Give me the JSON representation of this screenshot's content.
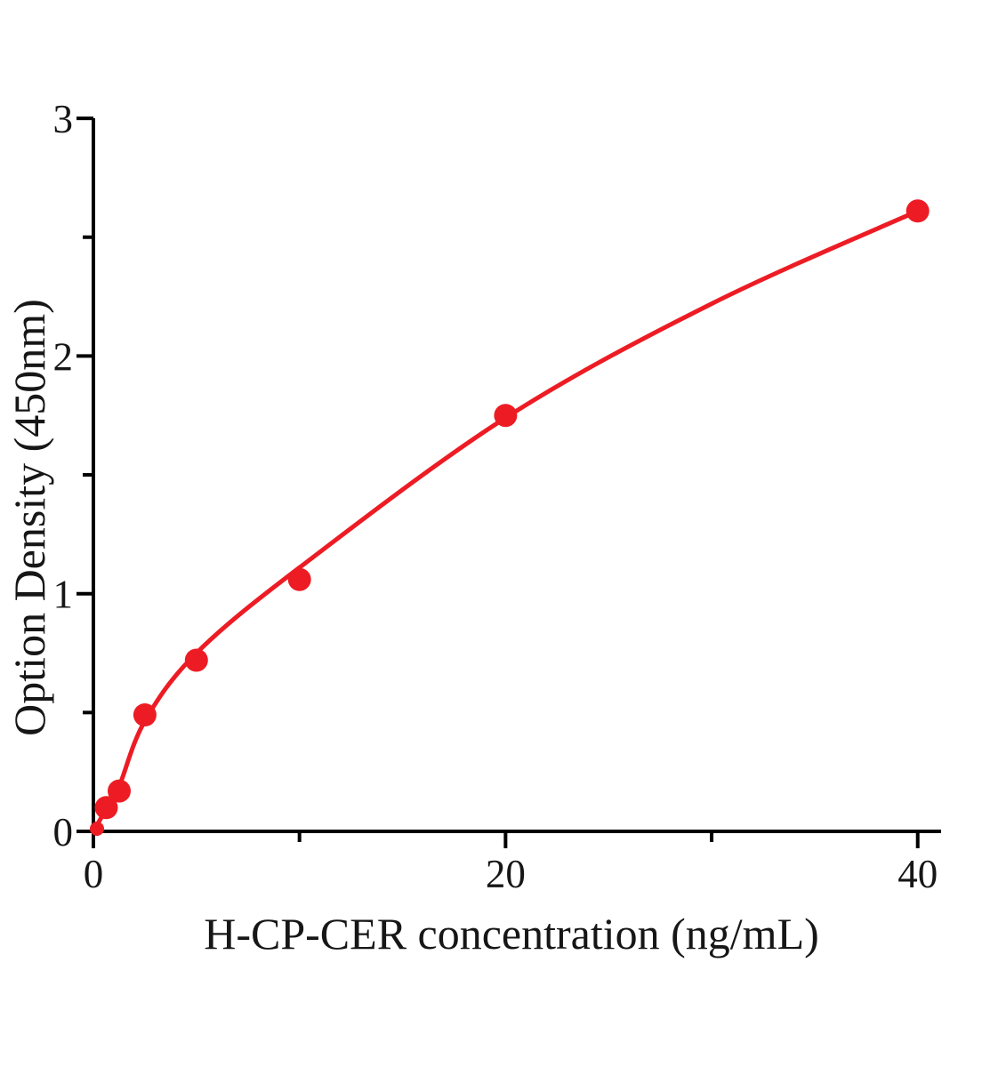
{
  "figure": {
    "background_color": "#ffffff"
  },
  "chart_data": {
    "type": "scatter",
    "title": "",
    "xlabel": "H-CP-CER concentration（ng/mL)",
    "ylabel": "Option Density（450nm）",
    "xlim": [
      0,
      41
    ],
    "ylim": [
      0,
      3
    ],
    "grid": false,
    "legend": "none",
    "x_ticks": {
      "major_values": [
        0,
        20,
        40
      ],
      "major_labels": [
        "0",
        "20",
        "40"
      ],
      "minor_values": [
        10,
        30
      ]
    },
    "y_ticks": {
      "major_values": [
        0,
        1,
        2,
        3
      ],
      "major_labels": [
        "0",
        "1",
        "2",
        "3"
      ],
      "minor_values": [
        0.5,
        1.5,
        2.5
      ]
    },
    "series": [
      {
        "marker": "filled-circle",
        "color": "#ed1c24",
        "points": [
          {
            "x": 0,
            "y": 0
          },
          {
            "x": 0.625,
            "y": 0.1
          },
          {
            "x": 1.25,
            "y": 0.17
          },
          {
            "x": 2.5,
            "y": 0.49
          },
          {
            "x": 5,
            "y": 0.72
          },
          {
            "x": 10,
            "y": 1.06
          },
          {
            "x": 20,
            "y": 1.75
          },
          {
            "x": 40,
            "y": 2.61
          }
        ]
      }
    ],
    "fit_curve": {
      "color": "#ed1c24",
      "points": [
        [
          0,
          0
        ],
        [
          0.625,
          0.095
        ],
        [
          1.25,
          0.19
        ],
        [
          2.5,
          0.465
        ],
        [
          5,
          0.75
        ],
        [
          10,
          1.11
        ],
        [
          20,
          1.74
        ],
        [
          30,
          2.22
        ],
        [
          40,
          2.61
        ]
      ]
    },
    "colors": {
      "curve": "#ed1c24",
      "points": "#ed1c24",
      "axis": "#000000",
      "text": "#161616"
    }
  }
}
